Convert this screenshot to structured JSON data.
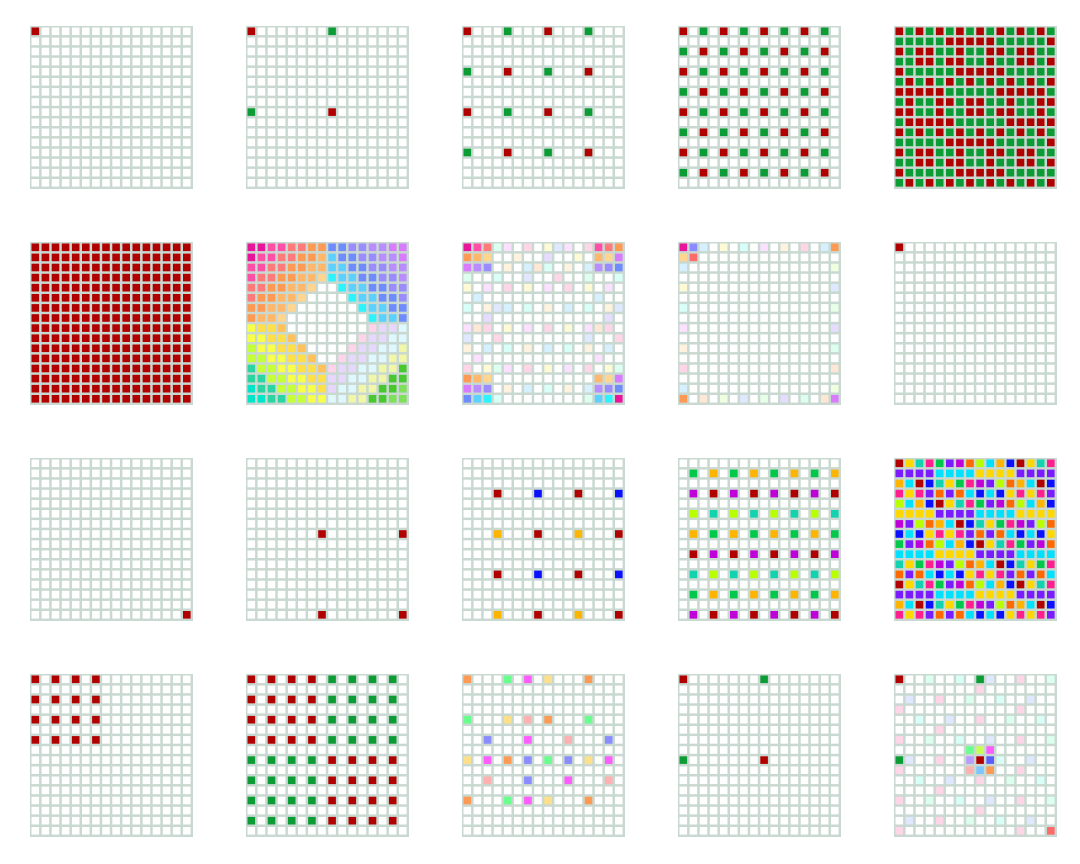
{
  "grid": {
    "rows": 16,
    "cols": 16,
    "empty_cell_color": "#ffffff",
    "grid_line_color": "#c9d8d0",
    "panel_rows": 4,
    "panel_cols": 5
  },
  "palettes": {
    "red_green": [
      "#b10000",
      "#0b9c35"
    ],
    "gradient": [
      "#e8159a",
      "#ff4fa6",
      "#ff7b7b",
      "#ff9a55",
      "#ffb76b",
      "#ffd58f",
      "#d87bff",
      "#b98cff",
      "#9a8cff",
      "#6f8cff",
      "#5cd1ff",
      "#2cf4ff",
      "#00e5c8",
      "#2bd4a0",
      "#c4ff3a",
      "#f7ff4a",
      "#ffe04a",
      "#ffc15a",
      "#7fe05a",
      "#48c82e",
      "#f2f7a8",
      "#dff7ff",
      "#e7d7ff",
      "#ffd3ea"
    ],
    "pastel": [
      "#ffd6e8",
      "#e6dcff",
      "#d6f0ff",
      "#dcfff0",
      "#fffad6",
      "#ffe7d6",
      "#d8fff8",
      "#efffe0",
      "#fbe0ff",
      "#e0e8ff",
      "#fff3e0",
      "#e8ffe8"
    ],
    "vivid": [
      "#b10000",
      "#0b10ff",
      "#ffb400",
      "#00e0ff",
      "#b8ff00",
      "#ff6a00",
      "#c000d8",
      "#7a1cff",
      "#00c84a",
      "#ff1f8e",
      "#12d2b0",
      "#ffd800"
    ],
    "bright_pastel": [
      "#ff9a55",
      "#ff6a6a",
      "#8a8cff",
      "#5cf0ff",
      "#68ff8e",
      "#c6ff58",
      "#ff5cff",
      "#b89cff",
      "#ffe08a",
      "#5c5cff",
      "#ffb0b0",
      "#7ac8ff"
    ]
  },
  "panels": [
    {
      "id": 1,
      "pattern": "single",
      "palette": "red_green"
    },
    {
      "id": 2,
      "pattern": "step8",
      "palette": "red_green"
    },
    {
      "id": 3,
      "pattern": "step4",
      "palette": "red_green"
    },
    {
      "id": 4,
      "pattern": "step2",
      "palette": "red_green"
    },
    {
      "id": 5,
      "pattern": "step1_mixed",
      "palette": "red_green"
    },
    {
      "id": 6,
      "pattern": "full_red",
      "palette": "red_green"
    },
    {
      "id": 7,
      "pattern": "gradient",
      "palette": "gradient"
    },
    {
      "id": 8,
      "pattern": "pastel_dense",
      "palette": "gradient"
    },
    {
      "id": 9,
      "pattern": "pastel_sparse",
      "palette": "pastel"
    },
    {
      "id": 10,
      "pattern": "single",
      "palette": "red_green"
    },
    {
      "id": 11,
      "pattern": "single_br",
      "palette": "red_green"
    },
    {
      "id": 12,
      "pattern": "br_step8",
      "palette": "red_green"
    },
    {
      "id": 13,
      "pattern": "br_step4",
      "palette": "vivid"
    },
    {
      "id": 14,
      "pattern": "br_step2",
      "palette": "vivid"
    },
    {
      "id": 15,
      "pattern": "step1_vivid",
      "palette": "vivid"
    },
    {
      "id": 16,
      "pattern": "block_step2",
      "palette": "red_green"
    },
    {
      "id": 17,
      "pattern": "halves_step2",
      "palette": "red_green"
    },
    {
      "id": 18,
      "pattern": "bright_sparse",
      "palette": "bright_pastel"
    },
    {
      "id": 19,
      "pattern": "step8",
      "palette": "red_green"
    },
    {
      "id": 20,
      "pattern": "pastel_mixed",
      "palette": "bright_pastel"
    }
  ]
}
